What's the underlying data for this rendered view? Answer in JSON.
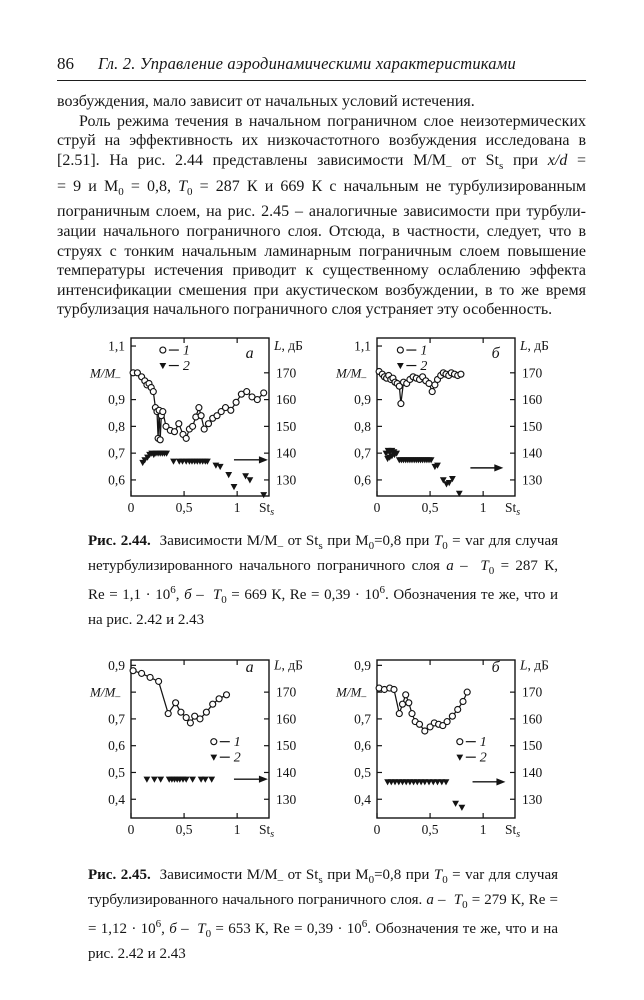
{
  "page": {
    "page_number": "86",
    "chapter_title": "Гл. 2.  Управление аэродинамическими характеристиками"
  },
  "body": {
    "lines": [
      {
        "html": "возбуждения, мало зависит от начальных условий истечения.",
        "justify": false,
        "indent": false
      },
      {
        "html": "Роль режима течения в начальном пограничном слое неизотермических",
        "justify": true,
        "indent": true
      },
      {
        "html": "струй на эффективность их низкочастотного возбуждения исследована в",
        "justify": true,
        "indent": false
      },
      {
        "html": "[2.51]. На рис. 2.44 представлены зависимости М/М<sub>–</sub> от St<sub>s</sub> при <i>x/d</i> =",
        "justify": true,
        "indent": false
      },
      {
        "html": "= 9 и М<sub>0</sub> = 0,8, <i>T</i><sub>0</sub> = 287 К и 669 К с начальным не турбулизированным",
        "justify": true,
        "indent": false
      },
      {
        "html": "пограничным слоем, на рис. 2.45 – аналогичные зависимости при турбули-",
        "justify": true,
        "indent": false
      },
      {
        "html": "зации начального пограничного слоя. Отсюда, в частности, следует, что в",
        "justify": true,
        "indent": false
      },
      {
        "html": "струях с тонким начальным ламинарным пограничным слоем повышение",
        "justify": true,
        "indent": false
      },
      {
        "html": "температуры истечения приводит к существенному ослаблению эффекта",
        "justify": true,
        "indent": false
      },
      {
        "html": "интенсификации смешения при акустическом возбуждении, в то же время",
        "justify": true,
        "indent": false
      },
      {
        "html": "турбулизация начального пограничного слоя устраняет эту особенность.",
        "justify": false,
        "indent": false
      }
    ]
  },
  "caption_244": {
    "label": "Рис. 2.44.",
    "lines": [
      {
        "html": "<b>Рис. 2.44.</b>&nbsp; Зависимости М/М<sub>–</sub> от St<sub>s</sub> при М<sub>0</sub>=0,8 при <i>T</i><sub>0</sub> = var для случая",
        "justify": true
      },
      {
        "html": "нетурбулизированного начального пограничного слоя <i>а</i> – &nbsp;<i>T</i><sub>0</sub> = 287 К,",
        "justify": true
      },
      {
        "html": "Re = 1,1 · 10<sup>6</sup>,  <i>б</i> – &nbsp;<i>T</i><sub>0</sub> = 669 К, Re = 0,39 · 10<sup>6</sup>. Обозначения те же, что и",
        "justify": true
      },
      {
        "html": "на рис. 2.42 и 2.43",
        "justify": false
      }
    ]
  },
  "caption_245": {
    "label": "Рис. 2.45.",
    "lines": [
      {
        "html": "<b>Рис. 2.45.</b>&nbsp; Зависимости М/М<sub>–</sub> от St<sub>s</sub> при М<sub>0</sub>=0,8 при <i>T</i><sub>0</sub> = var для случая",
        "justify": true
      },
      {
        "html": "турбулизированного начального пограничного слоя. <i>а</i> – &nbsp;<i>T</i><sub>0</sub> = 279 К, Re =",
        "justify": true
      },
      {
        "html": "= 1,12 · 10<sup>6</sup>,  <i>б</i> – &nbsp;<i>T</i><sub>0</sub> = 653 К, Re = 0,39 · 10<sup>6</sup>. Обозначения те же, что и на",
        "justify": true
      },
      {
        "html": "рис. 2.42 и 2.43",
        "justify": false
      }
    ]
  },
  "chart_data": [
    {
      "id": "fig-2-44-a",
      "type": "scatter",
      "title": "Рис. 2.44а: М/М– от Sts, T0 = 287 К, Re = 1,1·10^6",
      "ylabel": "М/М",
      "ylabel_sub": "–",
      "xlabel": "St",
      "xlabel_sub": "s",
      "right_title_italic": "L",
      "right_title_rest": ", дБ",
      "x_range": [
        0,
        1.3
      ],
      "y_range": [
        0.54,
        1.13
      ],
      "x_ticks": [
        {
          "v": 0,
          "label": "0"
        },
        {
          "v": 0.5,
          "label": "0,5"
        },
        {
          "v": 1,
          "label": "1"
        }
      ],
      "y_ticks_left": [
        {
          "v": 1.1,
          "label": "1,1"
        },
        {
          "v": 1.0,
          "axis": true
        },
        {
          "v": 0.9,
          "label": "0,9"
        },
        {
          "v": 0.8,
          "label": "0,8"
        },
        {
          "v": 0.7,
          "label": "0,7"
        },
        {
          "v": 0.6,
          "label": "0,6"
        }
      ],
      "y_ticks_right": [
        {
          "v": 1.0,
          "label": "170"
        },
        {
          "v": 0.9,
          "label": "160"
        },
        {
          "v": 0.8,
          "label": "150"
        },
        {
          "v": 0.7,
          "label": "140"
        },
        {
          "v": 0.6,
          "label": "130"
        }
      ],
      "series": [
        {
          "name": "1",
          "marker": "circle",
          "line": true,
          "x": [
            0.02,
            0.06,
            0.1,
            0.13,
            0.15,
            0.17,
            0.19,
            0.21,
            0.23,
            0.245,
            0.255,
            0.265,
            0.275,
            0.285,
            0.3,
            0.33,
            0.37,
            0.41,
            0.45,
            0.49,
            0.52,
            0.55,
            0.58,
            0.61,
            0.64,
            0.66,
            0.69,
            0.73,
            0.77,
            0.81,
            0.85,
            0.89,
            0.94,
            0.99,
            1.04,
            1.09,
            1.14,
            1.19,
            1.25
          ],
          "y": [
            1.0,
            1.0,
            0.985,
            0.97,
            0.955,
            0.96,
            0.945,
            0.93,
            0.87,
            0.855,
            0.755,
            0.86,
            0.75,
            0.84,
            0.855,
            0.8,
            0.785,
            0.78,
            0.81,
            0.77,
            0.755,
            0.79,
            0.8,
            0.835,
            0.87,
            0.84,
            0.79,
            0.81,
            0.83,
            0.84,
            0.855,
            0.87,
            0.86,
            0.89,
            0.92,
            0.93,
            0.91,
            0.9,
            0.925
          ]
        },
        {
          "name": "2",
          "marker": "triangle-down",
          "line": false,
          "x": [
            0.11,
            0.13,
            0.155,
            0.175,
            0.195,
            0.215,
            0.235,
            0.255,
            0.275,
            0.295,
            0.315,
            0.335,
            0.4,
            0.455,
            0.485,
            0.52,
            0.55,
            0.575,
            0.6,
            0.625,
            0.65,
            0.675,
            0.7,
            0.72,
            0.8,
            0.84,
            0.92,
            0.97,
            1.08,
            1.12,
            1.25
          ],
          "y": [
            0.665,
            0.675,
            0.685,
            0.695,
            0.7,
            0.695,
            0.7,
            0.7,
            0.7,
            0.7,
            0.7,
            0.7,
            0.67,
            0.67,
            0.67,
            0.67,
            0.67,
            0.67,
            0.67,
            0.67,
            0.67,
            0.67,
            0.67,
            0.67,
            0.655,
            0.65,
            0.62,
            0.575,
            0.615,
            0.6,
            0.545
          ]
        }
      ],
      "legend": {
        "x": 0.3,
        "y": 1.085,
        "items": [
          {
            "marker": "circle",
            "label": "1"
          },
          {
            "marker": "triangle-down",
            "label": "2"
          }
        ]
      },
      "arrow": {
        "y": 0.675,
        "x1": 0.97,
        "x2": 1.29
      },
      "panel": {
        "label": "а",
        "x": 1.08,
        "y": 1.055
      }
    },
    {
      "id": "fig-2-44-b",
      "type": "scatter",
      "title": "Рис. 2.44б: М/М– от Sts, T0 = 669 К, Re = 0,39·10^6",
      "ylabel": "М/М",
      "ylabel_sub": "–",
      "xlabel": "St",
      "xlabel_sub": "s",
      "right_title_italic": "L",
      "right_title_rest": ", дБ",
      "x_range": [
        0,
        1.3
      ],
      "y_range": [
        0.54,
        1.13
      ],
      "x_ticks": [
        {
          "v": 0,
          "label": "0"
        },
        {
          "v": 0.5,
          "label": "0,5"
        },
        {
          "v": 1,
          "label": "1"
        }
      ],
      "y_ticks_left": [
        {
          "v": 1.1,
          "label": "1,1"
        },
        {
          "v": 1.0,
          "axis": true
        },
        {
          "v": 0.9,
          "label": "0,9"
        },
        {
          "v": 0.8,
          "label": "0,8"
        },
        {
          "v": 0.7,
          "label": "0,7"
        },
        {
          "v": 0.6,
          "label": "0,6"
        }
      ],
      "y_ticks_right": [
        {
          "v": 1.0,
          "label": "170"
        },
        {
          "v": 0.9,
          "label": "160"
        },
        {
          "v": 0.8,
          "label": "150"
        },
        {
          "v": 0.7,
          "label": "140"
        },
        {
          "v": 0.6,
          "label": "130"
        }
      ],
      "series": [
        {
          "name": "1",
          "marker": "circle",
          "line": true,
          "x": [
            0.02,
            0.05,
            0.07,
            0.09,
            0.11,
            0.13,
            0.15,
            0.17,
            0.19,
            0.21,
            0.225,
            0.25,
            0.28,
            0.31,
            0.34,
            0.37,
            0.4,
            0.43,
            0.46,
            0.49,
            0.52,
            0.545,
            0.57,
            0.6,
            0.625,
            0.65,
            0.675,
            0.7,
            0.73,
            0.76,
            0.79
          ],
          "y": [
            1.005,
            0.995,
            0.985,
            0.98,
            0.99,
            0.975,
            0.98,
            0.965,
            0.96,
            0.95,
            0.885,
            0.965,
            0.96,
            0.975,
            0.985,
            0.98,
            0.975,
            0.985,
            0.97,
            0.96,
            0.93,
            0.955,
            0.975,
            0.99,
            1.0,
            0.995,
            0.99,
            1.0,
            0.995,
            0.99,
            0.995
          ]
        },
        {
          "name": "2",
          "marker": "triangle-down",
          "line": false,
          "x": [
            0.085,
            0.105,
            0.12,
            0.14,
            0.16,
            0.1,
            0.12,
            0.14,
            0.165,
            0.185,
            0.21,
            0.23,
            0.25,
            0.27,
            0.29,
            0.31,
            0.33,
            0.35,
            0.37,
            0.39,
            0.41,
            0.43,
            0.45,
            0.47,
            0.49,
            0.51,
            0.545,
            0.57,
            0.625,
            0.655,
            0.68,
            0.71,
            0.775
          ],
          "y": [
            0.7,
            0.71,
            0.705,
            0.71,
            0.705,
            0.68,
            0.685,
            0.69,
            0.695,
            0.7,
            0.675,
            0.675,
            0.675,
            0.675,
            0.675,
            0.675,
            0.675,
            0.675,
            0.675,
            0.675,
            0.675,
            0.675,
            0.675,
            0.675,
            0.675,
            0.675,
            0.65,
            0.655,
            0.6,
            0.585,
            0.59,
            0.605,
            0.55
          ]
        }
      ],
      "legend": {
        "x": 0.22,
        "y": 1.085,
        "items": [
          {
            "marker": "circle",
            "label": "1"
          },
          {
            "marker": "triangle-down",
            "label": "2"
          }
        ]
      },
      "arrow": {
        "y": 0.645,
        "x1": 0.88,
        "x2": 1.19
      },
      "panel": {
        "label": "б",
        "x": 1.08,
        "y": 1.055
      }
    },
    {
      "id": "fig-2-45-a",
      "type": "scatter",
      "title": "Рис. 2.45а: М/М– от Sts, T0 = 279 К, Re = 1,12·10^6",
      "ylabel": "М/М",
      "ylabel_sub": "–",
      "xlabel": "St",
      "xlabel_sub": "s",
      "right_title_italic": "L",
      "right_title_rest": ", дБ",
      "x_range": [
        0,
        1.3
      ],
      "y_range": [
        0.33,
        0.92
      ],
      "x_ticks": [
        {
          "v": 0,
          "label": "0"
        },
        {
          "v": 0.5,
          "label": "0,5"
        },
        {
          "v": 1,
          "label": "1"
        }
      ],
      "y_ticks_left": [
        {
          "v": 0.9,
          "label": "0,9"
        },
        {
          "v": 0.8,
          "axis": true
        },
        {
          "v": 0.7,
          "label": "0,7"
        },
        {
          "v": 0.6,
          "label": "0,6"
        },
        {
          "v": 0.5,
          "label": "0,5"
        },
        {
          "v": 0.4,
          "label": "0,4"
        }
      ],
      "y_ticks_right": [
        {
          "v": 0.8,
          "label": "170"
        },
        {
          "v": 0.7,
          "label": "160"
        },
        {
          "v": 0.6,
          "label": "150"
        },
        {
          "v": 0.5,
          "label": "140"
        },
        {
          "v": 0.4,
          "label": "130"
        }
      ],
      "series": [
        {
          "name": "1",
          "marker": "circle",
          "line": true,
          "x": [
            0.02,
            0.1,
            0.18,
            0.26,
            0.35,
            0.42,
            0.47,
            0.52,
            0.56,
            0.6,
            0.65,
            0.71,
            0.77,
            0.83,
            0.9
          ],
          "y": [
            0.88,
            0.87,
            0.855,
            0.84,
            0.72,
            0.76,
            0.725,
            0.705,
            0.685,
            0.71,
            0.7,
            0.725,
            0.755,
            0.775,
            0.79
          ]
        },
        {
          "name": "2",
          "marker": "triangle-down",
          "line": false,
          "x": [
            0.15,
            0.22,
            0.28,
            0.36,
            0.385,
            0.41,
            0.435,
            0.46,
            0.49,
            0.52,
            0.58,
            0.66,
            0.7,
            0.76
          ],
          "y": [
            0.475,
            0.475,
            0.475,
            0.475,
            0.475,
            0.475,
            0.475,
            0.475,
            0.475,
            0.475,
            0.475,
            0.475,
            0.475,
            0.475
          ]
        }
      ],
      "legend": {
        "x": 0.78,
        "y": 0.615,
        "items": [
          {
            "marker": "circle",
            "label": "1"
          },
          {
            "marker": "triangle-down",
            "label": "2"
          }
        ]
      },
      "arrow": {
        "y": 0.475,
        "x1": 0.97,
        "x2": 1.29
      },
      "panel": {
        "label": "а",
        "x": 1.08,
        "y": 0.875
      }
    },
    {
      "id": "fig-2-45-b",
      "type": "scatter",
      "title": "Рис. 2.45б: М/М– от Sts, T0 = 653 К, Re = 0,39·10^6",
      "ylabel": "М/М",
      "ylabel_sub": "–",
      "xlabel": "St",
      "xlabel_sub": "s",
      "right_title_italic": "L",
      "right_title_rest": ", дБ",
      "x_range": [
        0,
        1.3
      ],
      "y_range": [
        0.33,
        0.92
      ],
      "x_ticks": [
        {
          "v": 0,
          "label": "0"
        },
        {
          "v": 0.5,
          "label": "0,5"
        },
        {
          "v": 1,
          "label": "1"
        }
      ],
      "y_ticks_left": [
        {
          "v": 0.9,
          "label": "0,9"
        },
        {
          "v": 0.8,
          "axis": true
        },
        {
          "v": 0.7,
          "label": "0,7"
        },
        {
          "v": 0.6,
          "label": "0,6"
        },
        {
          "v": 0.5,
          "label": "0,5"
        },
        {
          "v": 0.4,
          "label": "0,4"
        }
      ],
      "y_ticks_right": [
        {
          "v": 0.8,
          "label": "170"
        },
        {
          "v": 0.7,
          "label": "160"
        },
        {
          "v": 0.6,
          "label": "150"
        },
        {
          "v": 0.5,
          "label": "140"
        },
        {
          "v": 0.4,
          "label": "130"
        }
      ],
      "series": [
        {
          "name": "1",
          "marker": "circle",
          "line": true,
          "x": [
            0.02,
            0.07,
            0.12,
            0.16,
            0.21,
            0.24,
            0.27,
            0.3,
            0.33,
            0.36,
            0.4,
            0.45,
            0.5,
            0.54,
            0.58,
            0.62,
            0.66,
            0.71,
            0.76,
            0.81,
            0.85
          ],
          "y": [
            0.815,
            0.81,
            0.815,
            0.81,
            0.72,
            0.755,
            0.79,
            0.76,
            0.72,
            0.69,
            0.68,
            0.655,
            0.67,
            0.685,
            0.68,
            0.675,
            0.69,
            0.71,
            0.735,
            0.765,
            0.8
          ]
        },
        {
          "name": "2",
          "marker": "triangle-down",
          "line": false,
          "x": [
            0.1,
            0.135,
            0.17,
            0.205,
            0.24,
            0.275,
            0.31,
            0.345,
            0.38,
            0.415,
            0.45,
            0.49,
            0.53,
            0.57,
            0.61,
            0.65,
            0.74,
            0.8
          ],
          "y": [
            0.465,
            0.465,
            0.465,
            0.465,
            0.465,
            0.465,
            0.465,
            0.465,
            0.465,
            0.465,
            0.465,
            0.465,
            0.465,
            0.465,
            0.465,
            0.465,
            0.385,
            0.37
          ]
        }
      ],
      "legend": {
        "x": 0.78,
        "y": 0.615,
        "items": [
          {
            "marker": "circle",
            "label": "1"
          },
          {
            "marker": "triangle-down",
            "label": "2"
          }
        ]
      },
      "arrow": {
        "y": 0.465,
        "x1": 0.9,
        "x2": 1.21
      },
      "panel": {
        "label": "б",
        "x": 1.08,
        "y": 0.875
      }
    }
  ]
}
